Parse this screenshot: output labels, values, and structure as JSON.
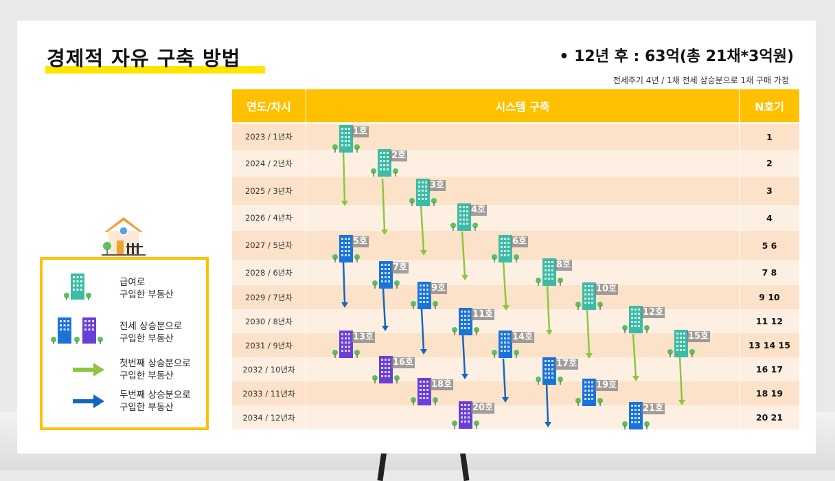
{
  "title": "경제적 자유 구축 방법",
  "headline": "• 12년 후 :  63억(총 21채*3억원)",
  "subnote": "전세주기 4년 / 1채 전세 상승분으로 1채 구매 가정",
  "table": {
    "headers": {
      "year": "연도/차시",
      "system": "시스템 구축",
      "n": "N호기"
    },
    "rows": [
      {
        "year": "2023 / 1년차",
        "n": "1"
      },
      {
        "year": "2024 / 2년차",
        "n": "2"
      },
      {
        "year": "2025 / 3년차",
        "n": "3"
      },
      {
        "year": "2026 / 4년차",
        "n": "4"
      },
      {
        "year": "2027 / 5년차",
        "n": "5 6"
      },
      {
        "year": "2028 / 6년차",
        "n": "7 8"
      },
      {
        "year": "2029 / 7년차",
        "n": "9 10"
      },
      {
        "year": "2030 / 8년차",
        "n": "11 12"
      },
      {
        "year": "2031 / 9년차",
        "n": "13 14 15"
      },
      {
        "year": "2032 / 10년차",
        "n": "16 17"
      },
      {
        "year": "2033 / 11년차",
        "n": "18 19"
      },
      {
        "year": "2034 / 12년차",
        "n": "20  21"
      }
    ]
  },
  "buildings": [
    {
      "label": "1호",
      "type": "teal"
    },
    {
      "label": "2호",
      "type": "teal"
    },
    {
      "label": "3호",
      "type": "teal"
    },
    {
      "label": "4호",
      "type": "teal"
    },
    {
      "label": "5호",
      "type": "blue"
    },
    {
      "label": "6호",
      "type": "teal"
    },
    {
      "label": "7호",
      "type": "blue"
    },
    {
      "label": "8호",
      "type": "teal"
    },
    {
      "label": "9호",
      "type": "blue"
    },
    {
      "label": "10호",
      "type": "teal"
    },
    {
      "label": "11호",
      "type": "blue"
    },
    {
      "label": "12호",
      "type": "teal"
    },
    {
      "label": "13호",
      "type": "purple"
    },
    {
      "label": "14호",
      "type": "blue"
    },
    {
      "label": "15호",
      "type": "teal"
    },
    {
      "label": "16호",
      "type": "purple"
    },
    {
      "label": "17호",
      "type": "blue"
    },
    {
      "label": "18호",
      "type": "purple"
    },
    {
      "label": "19호",
      "type": "blue"
    },
    {
      "label": "20호",
      "type": "purple"
    },
    {
      "label": "21호",
      "type": "blue"
    }
  ],
  "legend": [
    {
      "line1": "급여로",
      "line2": "구입한 부동산"
    },
    {
      "line1": "전세 상승분으로",
      "line2": "구입한 부동산"
    },
    {
      "line1": "첫번째 상승분으로",
      "line2": "구입한 부동산"
    },
    {
      "line1": "두번째 상승분으로",
      "line2": "구입한 부동산"
    }
  ],
  "colors": {
    "accent": "#ffc000",
    "teal": "#3dbba5",
    "blue": "#1a73d9",
    "purple": "#6a3fd6",
    "green_arrow": "#8dc63f",
    "blue_arrow": "#1565c0",
    "highlight": "#ffe600"
  }
}
